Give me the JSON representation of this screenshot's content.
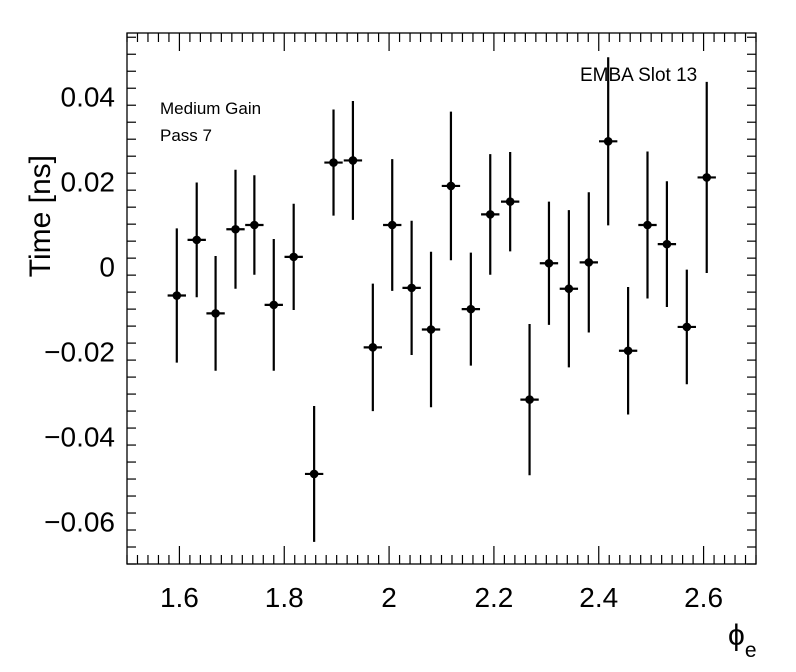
{
  "chart_data": {
    "type": "scatter",
    "xlabel": "ϕ",
    "xlabel_sub": "e",
    "ylabel": "Time [ns]",
    "xlim": [
      1.5,
      2.7
    ],
    "ylim": [
      -0.07,
      0.055
    ],
    "x_ticks": [
      1.6,
      1.8,
      2.0,
      2.2,
      2.4,
      2.6
    ],
    "x_tick_labels": [
      "1.6",
      "1.8",
      "2",
      "2.2",
      "2.4",
      "2.6"
    ],
    "y_ticks": [
      -0.06,
      -0.04,
      -0.02,
      0,
      0.02,
      0.04
    ],
    "y_tick_labels": [
      "−0.06",
      "−0.04",
      "−0.02",
      "0",
      "0.02",
      "0.04"
    ],
    "grid": false,
    "annotations": [
      "Medium Gain",
      "Pass 7",
      "EMBA Slot 13"
    ],
    "x_bin_half_width": 0.0175,
    "points": [
      {
        "x": 1.595,
        "y": -0.0068,
        "err": 0.0158
      },
      {
        "x": 1.633,
        "y": 0.0063,
        "err": 0.0135
      },
      {
        "x": 1.669,
        "y": -0.011,
        "err": 0.0135
      },
      {
        "x": 1.707,
        "y": 0.0088,
        "err": 0.014
      },
      {
        "x": 1.743,
        "y": 0.0098,
        "err": 0.0117
      },
      {
        "x": 1.78,
        "y": -0.009,
        "err": 0.0155
      },
      {
        "x": 1.818,
        "y": 0.0023,
        "err": 0.0125
      },
      {
        "x": 1.857,
        "y": -0.0488,
        "err": 0.016
      },
      {
        "x": 1.894,
        "y": 0.0245,
        "err": 0.0125
      },
      {
        "x": 1.931,
        "y": 0.025,
        "err": 0.014
      },
      {
        "x": 1.969,
        "y": -0.019,
        "err": 0.015
      },
      {
        "x": 2.006,
        "y": 0.0098,
        "err": 0.0155
      },
      {
        "x": 2.043,
        "y": -0.005,
        "err": 0.0158
      },
      {
        "x": 2.08,
        "y": -0.0148,
        "err": 0.0183
      },
      {
        "x": 2.118,
        "y": 0.019,
        "err": 0.0175
      },
      {
        "x": 2.156,
        "y": -0.01,
        "err": 0.0133
      },
      {
        "x": 2.193,
        "y": 0.0123,
        "err": 0.0142
      },
      {
        "x": 2.231,
        "y": 0.0153,
        "err": 0.0117
      },
      {
        "x": 2.268,
        "y": -0.0313,
        "err": 0.0178
      },
      {
        "x": 2.305,
        "y": 0.0008,
        "err": 0.0145
      },
      {
        "x": 2.343,
        "y": -0.0052,
        "err": 0.0185
      },
      {
        "x": 2.381,
        "y": 0.001,
        "err": 0.0165
      },
      {
        "x": 2.418,
        "y": 0.0295,
        "err": 0.0198
      },
      {
        "x": 2.456,
        "y": -0.0198,
        "err": 0.015
      },
      {
        "x": 2.493,
        "y": 0.0098,
        "err": 0.0173
      },
      {
        "x": 2.53,
        "y": 0.0053,
        "err": 0.0148
      },
      {
        "x": 2.568,
        "y": -0.0142,
        "err": 0.0135
      },
      {
        "x": 2.606,
        "y": 0.021,
        "err": 0.0225
      }
    ]
  }
}
